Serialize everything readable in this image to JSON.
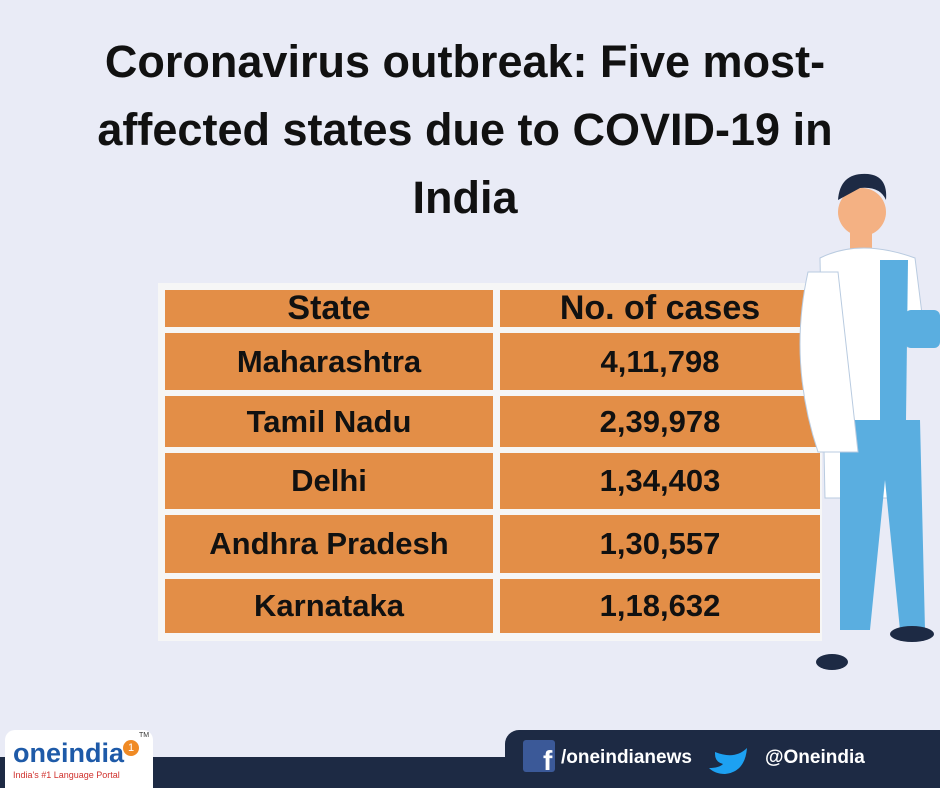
{
  "header": {
    "title": "Coronavirus outbreak: Five most-affected states due to COVID-19 in India"
  },
  "table": {
    "columns": [
      "State",
      "No. of cases"
    ],
    "rows": [
      [
        "Maharashtra",
        "4,11,798"
      ],
      [
        "Tamil Nadu",
        "2,39,978"
      ],
      [
        "Delhi",
        "1,34,403"
      ],
      [
        "Andhra Pradesh",
        "1,30,557"
      ],
      [
        "Karnataka",
        "1,18,632"
      ]
    ]
  },
  "footer": {
    "logo": "oneindia",
    "logo_badge": "1",
    "trademark": "TM",
    "tagline": "India's #1 Language Portal",
    "facebook": "/oneindianews",
    "twitter": "@Oneindia"
  }
}
